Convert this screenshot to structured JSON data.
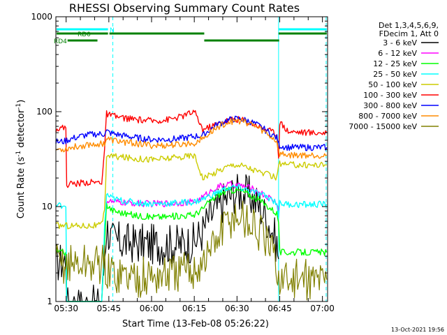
{
  "chart_data": {
    "type": "line",
    "title": "RHESSI Observing Summary Count Rates",
    "xlabel": "Start Time (13-Feb-08 05:26:22)",
    "ylabel_main": "Count Rate (s",
    "ylabel_sup1": "-1",
    "ylabel_mid": " detector",
    "ylabel_sup2": "-1",
    "ylabel_end": ")",
    "yscale": "log",
    "ylim": [
      1,
      1000
    ],
    "xlim": [
      26.4,
      121.8
    ],
    "x_ticks": [
      {
        "value": 30,
        "label": "05:30"
      },
      {
        "value": 45,
        "label": "05:45"
      },
      {
        "value": 60,
        "label": "06:00"
      },
      {
        "value": 75,
        "label": "06:15"
      },
      {
        "value": 90,
        "label": "06:30"
      },
      {
        "value": 105,
        "label": "06:45"
      },
      {
        "value": 120,
        "label": "07:00"
      }
    ],
    "y_ticks": [
      {
        "value": 1,
        "label": "1"
      },
      {
        "value": 10,
        "label": "10"
      },
      {
        "value": 100,
        "label": "100"
      },
      {
        "value": 1000,
        "label": "1000"
      }
    ],
    "legend_header": [
      "Det 1,3,4,5,6,9,",
      "FDecim 1, Att 0"
    ],
    "legend_placement": "right",
    "timestamp": "13-Oct-2021 19:56",
    "flags": [
      {
        "label": "N",
        "color": "#00ffff",
        "segments": [
          [
            26.4,
            44.7
          ],
          [
            104.6,
            121.5
          ]
        ]
      },
      {
        "label": "RD0",
        "color": "#008000",
        "segments": [
          [
            26.4,
            44.7
          ],
          [
            45.2,
            78.5
          ],
          [
            104.6,
            121.5
          ]
        ]
      },
      {
        "label": "RD4",
        "color": "#008000",
        "segments": [
          [
            30.5,
            41.0
          ],
          [
            78.5,
            104.8
          ]
        ]
      }
    ],
    "vlines": [
      {
        "x": 26.4,
        "style": "solid",
        "color": "#00ffff"
      },
      {
        "x": 104.6,
        "style": "solid",
        "color": "#00ffff"
      },
      {
        "x": 46.4,
        "style": "dashed",
        "color": "#00ffff"
      },
      {
        "x": 121.3,
        "style": "dashed",
        "color": "#00ffff"
      }
    ],
    "series": [
      {
        "name": "3 - 6 keV",
        "color": "#000000",
        "x": [
          26.4,
          28,
          29.9,
          30.2,
          32,
          34,
          36,
          38,
          40,
          41.5,
          42.5,
          43.5,
          44.2,
          46,
          50,
          55,
          60,
          65,
          70,
          75,
          78,
          80,
          83,
          86,
          89,
          92,
          95,
          98,
          100,
          102,
          104,
          104.6
        ],
        "y": [
          2.6,
          2.6,
          2.7,
          0.9,
          0.9,
          0.9,
          0.9,
          0.9,
          0.9,
          0.9,
          0.9,
          3.2,
          6.2,
          4.4,
          4.2,
          4.1,
          4.0,
          4.0,
          4.0,
          4.2,
          5.5,
          7.5,
          9.5,
          12,
          14,
          14,
          12.5,
          10,
          8,
          6,
          4,
          2.8
        ]
      },
      {
        "name": "6 - 12 keV",
        "color": "#ff00ff",
        "x": [
          44.2,
          46,
          50,
          55,
          60,
          65,
          70,
          75,
          78,
          80,
          83,
          86,
          89,
          92,
          95,
          98,
          100,
          102,
          104,
          104.6
        ],
        "y": [
          11.5,
          11.2,
          11,
          10.8,
          10.7,
          10.8,
          11,
          11.2,
          12.5,
          14,
          16,
          17,
          17,
          16.5,
          15.5,
          14,
          13,
          12,
          11,
          9
        ]
      },
      {
        "name": "12 - 25 keV",
        "color": "#00ff00",
        "x": [
          26.4,
          28,
          29.9,
          30.2,
          32,
          34,
          36,
          38,
          40,
          41.5,
          42.5,
          43.5,
          44.2,
          46,
          50,
          55,
          60,
          65,
          70,
          75,
          78,
          80,
          83,
          86,
          89,
          92,
          95,
          98,
          100,
          102,
          104,
          104.6,
          105,
          108,
          112,
          116,
          120,
          121.5
        ],
        "y": [
          3.3,
          3.3,
          3.3,
          0.9,
          0.9,
          0.9,
          0.9,
          0.9,
          0.9,
          0.9,
          0.9,
          4.2,
          10.5,
          9.2,
          8.5,
          8.0,
          7.8,
          7.8,
          8.0,
          8.2,
          9.5,
          11,
          13,
          14.5,
          15,
          14.5,
          13,
          11.5,
          10.5,
          9.5,
          8.5,
          7.0,
          3.3,
          3.3,
          3.3,
          3.3,
          3.3,
          3.3
        ]
      },
      {
        "name": "25 - 50 keV",
        "color": "#00ffff",
        "x": [
          26.4,
          28,
          29.9,
          30.2,
          32,
          34,
          36,
          38,
          40,
          41.5,
          42.5,
          43.5,
          44.2,
          46,
          50,
          55,
          60,
          65,
          70,
          75,
          78,
          80,
          83,
          86,
          89,
          92,
          95,
          98,
          100,
          102,
          104,
          104.6,
          105,
          108,
          112,
          116,
          120,
          121.5
        ],
        "y": [
          10.2,
          10.3,
          10.5,
          0.9,
          0.9,
          0.9,
          0.9,
          0.9,
          0.9,
          0.9,
          0.9,
          6.0,
          13.5,
          12.2,
          11.5,
          11.0,
          10.7,
          10.8,
          11.0,
          11.2,
          12,
          12.8,
          14,
          15.5,
          16,
          15.5,
          14.5,
          13.5,
          12.8,
          12,
          11,
          8.0,
          10.8,
          10.6,
          10.5,
          10.5,
          10.6,
          10.6
        ]
      },
      {
        "name": "50 - 100 keV",
        "color": "#cccc00",
        "x": [
          26.4,
          28,
          29.9,
          30.2,
          32,
          34,
          36,
          38,
          40,
          41.5,
          42.5,
          43.5,
          44.2,
          46,
          50,
          55,
          60,
          65,
          70,
          75,
          78,
          80,
          83,
          86,
          89,
          92,
          95,
          98,
          100,
          102,
          104,
          104.6,
          105,
          108,
          112,
          116,
          120,
          121.5
        ],
        "y": [
          6.3,
          6.3,
          6.4,
          6.3,
          6.3,
          6.3,
          6.3,
          6.3,
          6.3,
          6.3,
          6.4,
          9.0,
          35,
          34,
          33,
          32,
          31.5,
          32,
          33,
          35,
          20,
          21,
          23.5,
          26,
          28,
          27,
          25,
          23,
          22,
          21,
          20,
          29,
          28,
          27.5,
          27.5,
          27.5,
          27.5,
          27.5
        ]
      },
      {
        "name": "100 - 300 keV",
        "color": "#ff0000",
        "x": [
          26.4,
          28,
          29.9,
          30.2,
          32,
          34,
          36,
          38,
          40,
          41.5,
          42.5,
          43.5,
          44.2,
          46,
          50,
          55,
          60,
          65,
          70,
          75,
          78,
          80,
          83,
          86,
          89,
          92,
          95,
          98,
          100,
          102,
          104,
          104.6,
          105,
          108,
          112,
          116,
          120,
          121.5
        ],
        "y": [
          66,
          67,
          68,
          17,
          17.5,
          17.5,
          18,
          18,
          18,
          18,
          18.2,
          40,
          95,
          90,
          86,
          82,
          80,
          82,
          88,
          100,
          65,
          68,
          74,
          80,
          84,
          82,
          76,
          70,
          66,
          62,
          58,
          35,
          78,
          62,
          61,
          60,
          60,
          60
        ]
      },
      {
        "name": "300 - 800 keV",
        "color": "#0000ff",
        "x": [
          26.4,
          28,
          29.9,
          30.2,
          32,
          34,
          36,
          38,
          40,
          41.5,
          42.5,
          43.5,
          44.2,
          46,
          50,
          55,
          60,
          65,
          70,
          75,
          78,
          80,
          83,
          86,
          89,
          92,
          95,
          98,
          100,
          102,
          104,
          104.6,
          105,
          108,
          112,
          116,
          120,
          121.5
        ],
        "y": [
          48,
          48,
          49,
          50,
          52,
          54,
          56,
          57,
          58,
          58,
          58.5,
          58,
          62,
          59,
          56,
          53,
          51,
          51,
          52,
          55,
          56,
          63,
          73,
          80,
          84,
          83,
          78,
          70,
          64,
          58,
          53,
          46,
          44,
          42,
          42,
          42,
          42,
          42
        ]
      },
      {
        "name": "800 - 7000 keV",
        "color": "#ff8c00",
        "x": [
          26.4,
          28,
          29.9,
          30.2,
          32,
          34,
          36,
          38,
          40,
          41.5,
          42.5,
          43.5,
          44.2,
          46,
          50,
          55,
          60,
          65,
          70,
          75,
          78,
          80,
          83,
          86,
          89,
          92,
          95,
          98,
          100,
          102,
          104,
          104.6,
          105,
          108,
          112,
          116,
          120,
          121.5
        ],
        "y": [
          40,
          40,
          40.5,
          41,
          42,
          43,
          44,
          45,
          45.5,
          46,
          46,
          46.5,
          52,
          50,
          48,
          46,
          44,
          44,
          45,
          47,
          52,
          58,
          68,
          76,
          80,
          79,
          74,
          66,
          60,
          54,
          49,
          38,
          36,
          35,
          35,
          35,
          35,
          35
        ]
      },
      {
        "name": "7000 - 15000 keV",
        "color": "#808000",
        "x": [
          26.4,
          28,
          29.9,
          30.2,
          32,
          34,
          36,
          38,
          40,
          41.5,
          42.5,
          43.5,
          44.2,
          46,
          50,
          55,
          60,
          65,
          70,
          75,
          78,
          80,
          83,
          86,
          89,
          92,
          95,
          98,
          100,
          102,
          104,
          104.6,
          105,
          108,
          112,
          116,
          120,
          121.5
        ],
        "y": [
          2.5,
          2.5,
          2.5,
          2.5,
          2.5,
          2.5,
          2.5,
          2.5,
          2.5,
          2.5,
          2.5,
          2.5,
          2.0,
          2.0,
          1.9,
          1.8,
          1.8,
          1.9,
          2.0,
          2.2,
          2.6,
          3.2,
          4.5,
          6.5,
          8,
          7.5,
          6.5,
          5.2,
          4.2,
          3.3,
          2.5,
          1.7,
          1.7,
          1.7,
          1.7,
          1.7,
          1.7,
          1.7
        ]
      }
    ]
  }
}
